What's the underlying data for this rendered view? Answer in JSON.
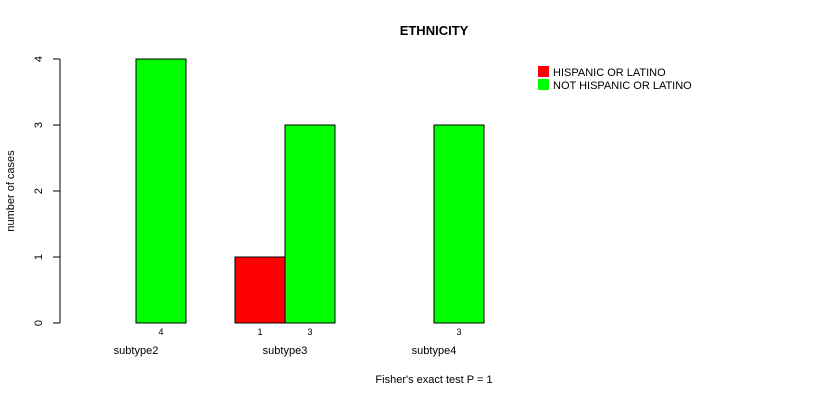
{
  "chart_data": {
    "type": "bar",
    "title": "ETHNICITY",
    "xlabel": "Fisher's exact test P = 1",
    "ylabel": "number of cases",
    "categories": [
      "subtype2",
      "subtype3",
      "subtype4"
    ],
    "series": [
      {
        "name": "HISPANIC OR LATINO",
        "color": "#ff0000",
        "values": [
          0,
          1,
          0
        ]
      },
      {
        "name": "NOT HISPANIC OR LATINO",
        "color": "#00ff00",
        "values": [
          4,
          3,
          3
        ]
      }
    ],
    "count_labels": [
      {
        "category": "subtype2",
        "series": 1,
        "text": "4"
      },
      {
        "category": "subtype3",
        "series": 0,
        "text": "1"
      },
      {
        "category": "subtype3",
        "series": 1,
        "text": "3"
      },
      {
        "category": "subtype4",
        "series": 1,
        "text": "3"
      }
    ],
    "yticks": [
      0,
      1,
      2,
      3,
      4
    ],
    "ylim": [
      0,
      4
    ],
    "grid": false,
    "legend": {
      "position": "top-right"
    }
  }
}
